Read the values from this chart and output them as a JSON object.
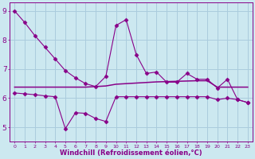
{
  "line1_x": [
    0,
    1,
    2,
    3,
    4,
    5,
    6,
    7,
    8,
    9,
    10,
    11,
    12,
    13,
    14,
    15,
    16,
    17,
    18,
    19,
    20,
    21,
    22,
    23
  ],
  "line1_y": [
    9.0,
    8.6,
    8.15,
    7.75,
    7.35,
    6.95,
    6.7,
    6.5,
    6.4,
    6.75,
    8.5,
    8.7,
    7.5,
    6.85,
    6.9,
    6.55,
    6.55,
    6.85,
    6.65,
    6.65,
    6.35,
    6.65,
    5.95,
    5.85
  ],
  "line2_x": [
    0,
    1,
    2,
    3,
    4,
    5,
    6,
    7,
    8,
    9,
    10,
    11,
    12,
    13,
    14,
    15,
    16,
    17,
    18,
    19,
    20,
    21,
    22,
    23
  ],
  "line2_y": [
    6.38,
    6.38,
    6.38,
    6.38,
    6.38,
    6.38,
    6.38,
    6.38,
    6.4,
    6.42,
    6.48,
    6.5,
    6.52,
    6.54,
    6.56,
    6.57,
    6.58,
    6.59,
    6.6,
    6.6,
    6.38,
    6.38,
    6.38,
    6.38
  ],
  "line3_x": [
    0,
    1,
    2,
    3,
    4,
    5,
    6,
    7,
    8,
    9,
    10,
    11,
    12,
    13,
    14,
    15,
    16,
    17,
    18,
    19,
    20,
    21,
    22,
    23
  ],
  "line3_y": [
    6.18,
    6.15,
    6.12,
    6.08,
    6.05,
    4.95,
    5.5,
    5.48,
    5.3,
    5.2,
    6.05,
    6.05,
    6.05,
    6.05,
    6.05,
    6.05,
    6.05,
    6.05,
    6.05,
    6.05,
    5.95,
    6.0,
    5.95,
    5.85
  ],
  "line_color": "#880088",
  "bg_color": "#cce8f0",
  "grid_color": "#aaccdd",
  "xlabel": "Windchill (Refroidissement éolien,°C)",
  "xlim": [
    -0.5,
    23.5
  ],
  "ylim": [
    4.5,
    9.3
  ],
  "xticks": [
    0,
    1,
    2,
    3,
    4,
    5,
    6,
    7,
    8,
    9,
    10,
    11,
    12,
    13,
    14,
    15,
    16,
    17,
    18,
    19,
    20,
    21,
    22,
    23
  ],
  "yticks": [
    5,
    6,
    7,
    8,
    9
  ]
}
